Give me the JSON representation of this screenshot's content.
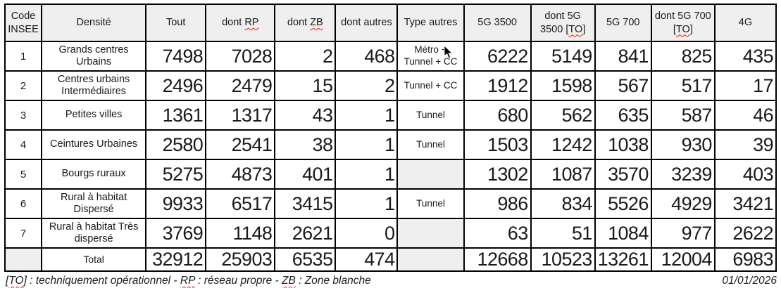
{
  "table": {
    "columns": [
      {
        "key": "code-insee",
        "label": "Code INSEE"
      },
      {
        "key": "densite",
        "label": "Densité"
      },
      {
        "key": "tout",
        "label": "Tout"
      },
      {
        "key": "dont-rp",
        "pre": "dont ",
        "wavy": "RP"
      },
      {
        "key": "dont-zb",
        "pre": "dont ",
        "wavy": "ZB"
      },
      {
        "key": "dont-autres",
        "label": "dont autres"
      },
      {
        "key": "type-autres",
        "label": "Type autres"
      },
      {
        "key": "5g-3500",
        "label": "5G 3500"
      },
      {
        "key": "dont-5g-3500-to",
        "pre": "dont 5G 3500 [",
        "wavy": "TO",
        "post": "]"
      },
      {
        "key": "5g-700",
        "label": "5G 700"
      },
      {
        "key": "dont-5g-700-to",
        "pre": "dont 5G 700 [",
        "wavy": "TO",
        "post": "]"
      },
      {
        "key": "4g",
        "label": "4G"
      }
    ],
    "rows": [
      [
        "1",
        "Grands centres Urbains",
        "7498",
        "7028",
        "2",
        "468",
        "Métro + Tunnel + CC",
        "6222",
        "5149",
        "841",
        "825",
        "435"
      ],
      [
        "2",
        "Centres urbains Intermédiaires",
        "2496",
        "2479",
        "15",
        "2",
        "Tunnel + CC",
        "1912",
        "1598",
        "567",
        "517",
        "17"
      ],
      [
        "3",
        "Petites villes",
        "1361",
        "1317",
        "43",
        "1",
        "Tunnel",
        "680",
        "562",
        "635",
        "587",
        "46"
      ],
      [
        "4",
        "Ceintures Urbaines",
        "2580",
        "2541",
        "38",
        "1",
        "Tunnel",
        "1503",
        "1242",
        "1038",
        "930",
        "39"
      ],
      [
        "5",
        "Bourgs ruraux",
        "5275",
        "4873",
        "401",
        "1",
        "",
        "1302",
        "1087",
        "3570",
        "3239",
        "403"
      ],
      [
        "6",
        "Rural à habitat Dispersé",
        "9933",
        "6517",
        "3415",
        "1",
        "Tunnel",
        "986",
        "834",
        "5526",
        "4929",
        "3421"
      ],
      [
        "7",
        "Rural à habitat Très dispersé",
        "3769",
        "1148",
        "2621",
        "0",
        "",
        "63",
        "51",
        "1084",
        "977",
        "2622"
      ],
      [
        "",
        "Total",
        "32912",
        "25903",
        "6535",
        "474",
        "",
        "12668",
        "10523",
        "13261",
        "12004",
        "6983"
      ]
    ]
  },
  "footer": {
    "note_segments": [
      {
        "text": "["
      },
      {
        "text": "TO",
        "wavy": true
      },
      {
        "text": "] : techniquement opérationnel - "
      },
      {
        "text": "RP",
        "wavy": true
      },
      {
        "text": " : réseau propre - "
      },
      {
        "text": "ZB",
        "wavy": true
      },
      {
        "text": " : Zone blanche"
      }
    ],
    "date": "01/01/2026"
  },
  "colors": {
    "header_bg": "#efefef",
    "empty_cell_bg": "#efefef",
    "border": "#000000",
    "squiggle": "#ff1a00"
  }
}
